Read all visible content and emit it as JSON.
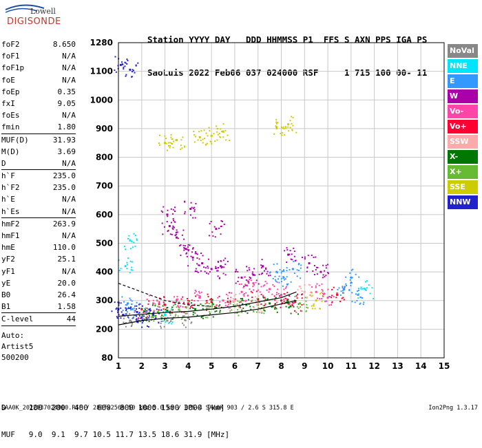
{
  "logo": {
    "line1": "Lowell",
    "line2": "DIGISONDE"
  },
  "header": {
    "line1": "Station YYYY DAY   DDD HHMMSS P1  FFS S AXN PPS IGA PS",
    "line2": "SaoLuis 2022 Feb06 037 024000 RSF     1 715 100 00- 11"
  },
  "params": [
    {
      "name": "foF2",
      "value": "8.650"
    },
    {
      "name": "foF1",
      "value": "N/A"
    },
    {
      "name": "foF1p",
      "value": "N/A"
    },
    {
      "name": "foE",
      "value": "N/A"
    },
    {
      "name": "foEp",
      "value": "0.35"
    },
    {
      "name": "fxI",
      "value": "9.05"
    },
    {
      "name": "foEs",
      "value": "N/A"
    },
    {
      "name": "fmin",
      "value": "1.80",
      "sep": true
    },
    {
      "name": "MUF(D)",
      "value": "31.93"
    },
    {
      "name": "M(D)",
      "value": "3.69"
    },
    {
      "name": "D",
      "value": "N/A",
      "sep": true
    },
    {
      "name": "h`F",
      "value": "235.0"
    },
    {
      "name": "h`F2",
      "value": "235.0"
    },
    {
      "name": "h`E",
      "value": "N/A"
    },
    {
      "name": "h`Es",
      "value": "N/A",
      "sep": true
    },
    {
      "name": "hmF2",
      "value": "263.9"
    },
    {
      "name": "hmF1",
      "value": "N/A"
    },
    {
      "name": "hmE",
      "value": "110.0"
    },
    {
      "name": "yF2",
      "value": "25.1"
    },
    {
      "name": "yF1",
      "value": "N/A"
    },
    {
      "name": "yE",
      "value": "20.0"
    },
    {
      "name": "B0",
      "value": "26.4"
    },
    {
      "name": "B1",
      "value": "1.58",
      "sep": true
    },
    {
      "name": "C-level",
      "value": "44",
      "sep": true
    }
  ],
  "auto": {
    "line1": "Auto:",
    "line2": "Artist5",
    "line3": "500200"
  },
  "legend": [
    {
      "label": "NoVal",
      "color": "#888888"
    },
    {
      "label": "NNE",
      "color": "#00e5ff"
    },
    {
      "label": "E",
      "color": "#3399ff"
    },
    {
      "label": "W",
      "color": "#aa00aa"
    },
    {
      "label": "Vo-",
      "color": "#ff44aa"
    },
    {
      "label": "Vo+",
      "color": "#ff0033"
    },
    {
      "label": "SSW",
      "color": "#ffaaaa"
    },
    {
      "label": "X-",
      "color": "#007700"
    },
    {
      "label": "X+",
      "color": "#66bb33"
    },
    {
      "label": "SSE",
      "color": "#cccc00"
    },
    {
      "label": "NNW",
      "color": "#2222cc"
    }
  ],
  "muf_table": {
    "line1": "D     100  200  400  600  800 1000 1500 3000 [km]",
    "line2": "MUF   9.0  9.1  9.7 10.5 11.7 13.5 18.6 31.9 [MHz]"
  },
  "footer": "SAA0K_2022037024000.RSF / 280fx256h 50 kHz 5.0 km / DPS-4 SAA0K 903 / 2.6 S 315.8 E",
  "version": "Ion2Png 1.3.17",
  "chart_data": {
    "type": "scatter",
    "title": "",
    "xlabel": "",
    "ylabel": "",
    "xlim": [
      1,
      15
    ],
    "ylim": [
      80,
      1280
    ],
    "x_ticks": [
      1,
      2,
      3,
      4,
      5,
      6,
      7,
      8,
      9,
      10,
      11,
      12,
      13,
      14,
      15
    ],
    "y_ticks": [
      80,
      200,
      300,
      400,
      500,
      600,
      700,
      800,
      900,
      1000,
      1100,
      1280
    ],
    "grid": true,
    "series": [
      {
        "name": "W",
        "points": [
          [
            3.2,
            560
          ],
          [
            3.5,
            520
          ],
          [
            3.9,
            480
          ],
          [
            4.2,
            450
          ],
          [
            4.6,
            430
          ],
          [
            5.0,
            410
          ],
          [
            5.4,
            420
          ],
          [
            6.3,
            380
          ],
          [
            6.8,
            390
          ],
          [
            7.2,
            420
          ],
          [
            8.3,
            460
          ],
          [
            9.2,
            430
          ],
          [
            9.7,
            400
          ],
          [
            3.1,
            600
          ],
          [
            4.1,
            620
          ],
          [
            5.2,
            550
          ]
        ]
      },
      {
        "name": "Vo-",
        "points": [
          [
            2.5,
            290
          ],
          [
            3.5,
            300
          ],
          [
            4.5,
            310
          ],
          [
            5.5,
            300
          ],
          [
            6.3,
            330
          ],
          [
            6.8,
            360
          ],
          [
            7.5,
            340
          ],
          [
            8.0,
            320
          ],
          [
            9.5,
            330
          ],
          [
            10.0,
            310
          ]
        ]
      },
      {
        "name": "Vo+",
        "points": [
          [
            2.0,
            270
          ],
          [
            3.0,
            285
          ],
          [
            4.0,
            290
          ],
          [
            5.0,
            295
          ],
          [
            6.0,
            300
          ],
          [
            7.0,
            305
          ],
          [
            8.0,
            300
          ],
          [
            8.6,
            295
          ],
          [
            10.4,
            320
          ]
        ]
      },
      {
        "name": "E",
        "points": [
          [
            1.4,
            290
          ],
          [
            1.6,
            270
          ],
          [
            7.8,
            400
          ],
          [
            8.1,
            380
          ],
          [
            8.5,
            410
          ],
          [
            10.7,
            340
          ],
          [
            11.0,
            380
          ],
          [
            11.3,
            320
          ]
        ]
      },
      {
        "name": "NNE",
        "points": [
          [
            1.3,
            420
          ],
          [
            1.5,
            510
          ],
          [
            3.0,
            250
          ],
          [
            11.6,
            340
          ]
        ]
      },
      {
        "name": "X-",
        "points": [
          [
            2.3,
            255
          ],
          [
            3.1,
            265
          ],
          [
            4.3,
            270
          ],
          [
            5.2,
            275
          ],
          [
            6.5,
            285
          ],
          [
            7.5,
            290
          ],
          [
            8.4,
            280
          ]
        ]
      },
      {
        "name": "X+",
        "points": [
          [
            2.7,
            260
          ],
          [
            3.6,
            268
          ],
          [
            4.8,
            272
          ],
          [
            6.0,
            280
          ],
          [
            7.0,
            285
          ],
          [
            8.8,
            290
          ]
        ]
      },
      {
        "name": "SSE",
        "points": [
          [
            3.0,
            850
          ],
          [
            3.5,
            860
          ],
          [
            4.5,
            870
          ],
          [
            5.0,
            875
          ],
          [
            5.5,
            890
          ],
          [
            7.8,
            905
          ],
          [
            8.3,
            915
          ],
          [
            9.5,
            300
          ]
        ]
      },
      {
        "name": "SSW",
        "points": [
          [
            6.0,
            300
          ],
          [
            7.0,
            290
          ],
          [
            9.0,
            330
          ]
        ]
      },
      {
        "name": "NNW",
        "points": [
          [
            1.0,
            270
          ],
          [
            1.2,
            250
          ],
          [
            1.5,
            1110
          ],
          [
            1.8,
            260
          ],
          [
            2.0,
            240
          ],
          [
            2.5,
            250
          ],
          [
            1.1,
            1140
          ]
        ]
      },
      {
        "name": "NoVal",
        "points": [
          [
            1.5,
            230
          ],
          [
            2.2,
            260
          ],
          [
            3.1,
            230
          ],
          [
            4.0,
            240
          ]
        ]
      }
    ],
    "traces": [
      {
        "name": "profile",
        "points": [
          [
            1.0,
            215
          ],
          [
            2.0,
            230
          ],
          [
            3.0,
            238
          ],
          [
            4.0,
            242
          ],
          [
            5.0,
            250
          ],
          [
            6.0,
            258
          ],
          [
            7.0,
            270
          ],
          [
            8.0,
            288
          ],
          [
            8.65,
            300
          ]
        ]
      },
      {
        "name": "virtual-height",
        "points": [
          [
            1.0,
            245
          ],
          [
            2.0,
            252
          ],
          [
            3.0,
            258
          ],
          [
            4.0,
            262
          ],
          [
            5.0,
            270
          ],
          [
            6.0,
            280
          ],
          [
            7.0,
            295
          ],
          [
            8.0,
            310
          ],
          [
            8.65,
            330
          ]
        ]
      },
      {
        "name": "upper-trace",
        "points": [
          [
            1.0,
            360
          ],
          [
            2.0,
            330
          ],
          [
            3.0,
            300
          ],
          [
            4.0,
            285
          ],
          [
            5.0,
            280
          ]
        ]
      }
    ]
  }
}
